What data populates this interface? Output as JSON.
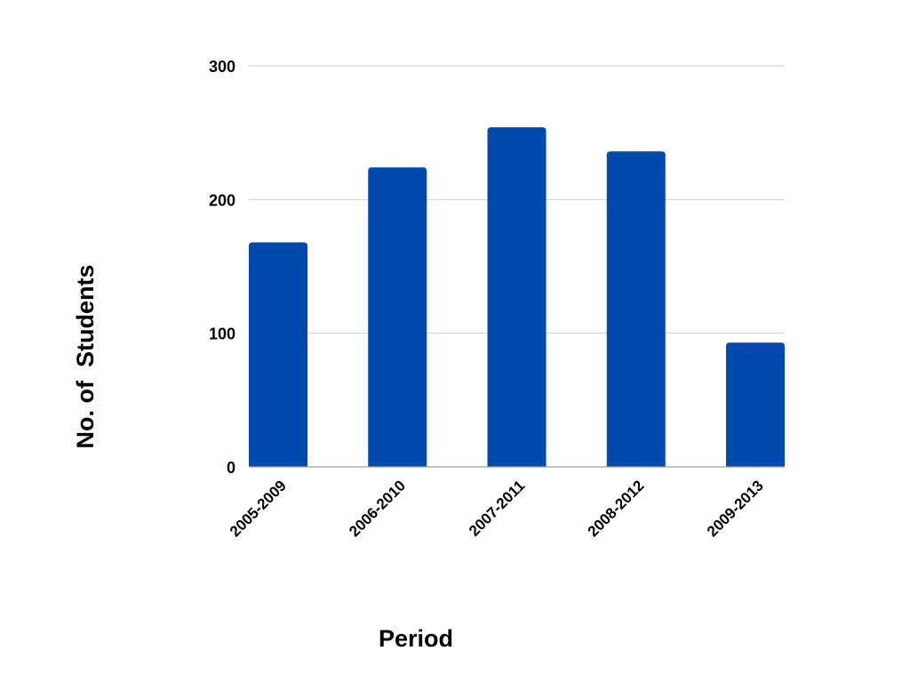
{
  "colors": {
    "bar": "#004aad",
    "grid": "#d0d0d0",
    "axis": "#9e9e9e",
    "text": "#000000",
    "background": "#ffffff"
  },
  "chart_data": {
    "type": "bar",
    "categories": [
      "2005-2009",
      "2006-2010",
      "2007-2011",
      "2008-2012",
      "2009-2013"
    ],
    "values": [
      168,
      224,
      254,
      236,
      93
    ],
    "title": "",
    "xlabel": "Period",
    "ylabel": "No. of  Students",
    "ylim": [
      0,
      300
    ],
    "yticks": [
      0,
      100,
      200,
      300
    ],
    "grid": true,
    "legend": "none"
  }
}
